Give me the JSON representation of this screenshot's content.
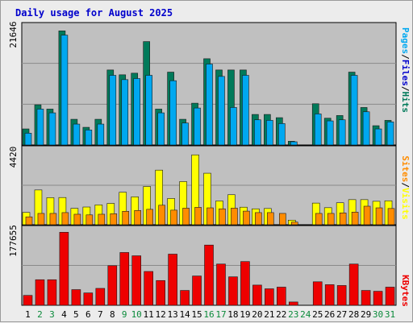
{
  "title": "Daily usage for August 2025",
  "colors": {
    "background": "#ececec",
    "panel": "#c0c0c0",
    "title": "#0000cc",
    "hits": "#007a5a",
    "files": "#00a8f0",
    "pages": "#00a8f0",
    "visits": "#ffff00",
    "sites": "#ff8c00",
    "kbytes": "#ee0000",
    "weekend_label": "#0a8a3a",
    "weekday_label": "#000000",
    "slash": "#000000"
  },
  "y_labels": {
    "top": "21646",
    "middle": "4420",
    "bottom": "177655"
  },
  "legend": {
    "top": [
      {
        "text": "Pages",
        "color_key": "pages"
      },
      {
        "text": "/",
        "color_key": "slash"
      },
      {
        "text": "Files",
        "color_key": "title"
      },
      {
        "text": "/",
        "color_key": "slash"
      },
      {
        "text": "Hits",
        "color_key": "hits"
      }
    ],
    "middle": [
      {
        "text": "Sites",
        "color_key": "sites"
      },
      {
        "text": "/",
        "color_key": "slash"
      },
      {
        "text": "Visits",
        "color_key": "visits"
      }
    ],
    "bottom": [
      {
        "text": "KBytes",
        "color_key": "kbytes"
      }
    ]
  },
  "chart_data": {
    "type": "bar",
    "title": "Daily usage for August 2025",
    "categories": [
      "1",
      "2",
      "3",
      "4",
      "5",
      "6",
      "7",
      "8",
      "9",
      "10",
      "11",
      "12",
      "13",
      "14",
      "15",
      "16",
      "17",
      "18",
      "19",
      "20",
      "21",
      "22",
      "23",
      "24",
      "25",
      "26",
      "27",
      "28",
      "29",
      "30",
      "31"
    ],
    "weekend_days": [
      "2",
      "3",
      "9",
      "10",
      "16",
      "17",
      "23",
      "24",
      "30",
      "31"
    ],
    "panels": [
      {
        "name": "top",
        "ymax": 21646,
        "series": [
          {
            "name": "Hits",
            "values": [
              3000,
              7500,
              6700,
              21300,
              4800,
              3300,
              4800,
              14000,
              13100,
              13400,
              19300,
              6700,
              13600,
              4800,
              7800,
              16100,
              14000,
              14000,
              14000,
              5700,
              5700,
              5100,
              700,
              0,
              7700,
              5000,
              5500,
              13600,
              7000,
              3600,
              4600
            ]
          },
          {
            "name": "Files",
            "values": [
              2200,
              6700,
              6000,
              20500,
              3900,
              2800,
              3900,
              13000,
              12200,
              12400,
              13000,
              6000,
              12000,
              4100,
              6900,
              15100,
              12800,
              7000,
              13000,
              4700,
              4600,
              4000,
              600,
              0,
              5800,
              4500,
              4700,
              13000,
              6200,
              3000,
              4300
            ]
          },
          {
            "name": "Pages",
            "values": [
              0,
              0,
              0,
              0,
              0,
              0,
              0,
              0,
              0,
              0,
              0,
              0,
              0,
              0,
              0,
              0,
              0,
              0,
              0,
              0,
              0,
              0,
              0,
              0,
              0,
              0,
              0,
              0,
              0,
              0,
              0
            ]
          }
        ]
      },
      {
        "name": "middle",
        "ymax": 4420,
        "series": [
          {
            "name": "Visits",
            "values": [
              750,
              2120,
              1650,
              1660,
              1000,
              1080,
              1210,
              1300,
              1980,
              1700,
              2330,
              3330,
              1600,
              2630,
              4260,
              3140,
              1450,
              1830,
              1070,
              970,
              990,
              0,
              280,
              0,
              1320,
              1040,
              1340,
              1530,
              1530,
              1430,
              1460
            ]
          },
          {
            "name": "Sites",
            "values": [
              480,
              690,
              690,
              740,
              640,
              600,
              640,
              670,
              820,
              870,
              940,
              1190,
              890,
              1010,
              1060,
              1030,
              970,
              1010,
              830,
              740,
              740,
              690,
              160,
              0,
              690,
              690,
              720,
              770,
              1130,
              1030,
              990
            ]
          }
        ]
      },
      {
        "name": "bottom",
        "ymax": 177655,
        "series": [
          {
            "name": "KBytes",
            "values": [
              24000,
              62000,
              62000,
              177000,
              38000,
              30000,
              41000,
              96000,
              128000,
              120000,
              82000,
              60000,
              124000,
              36000,
              71000,
              146000,
              100000,
              69000,
              106000,
              49000,
              40000,
              44000,
              8000,
              0,
              57000,
              50000,
              48000,
              100000,
              36000,
              34000,
              44000
            ]
          }
        ]
      }
    ]
  }
}
